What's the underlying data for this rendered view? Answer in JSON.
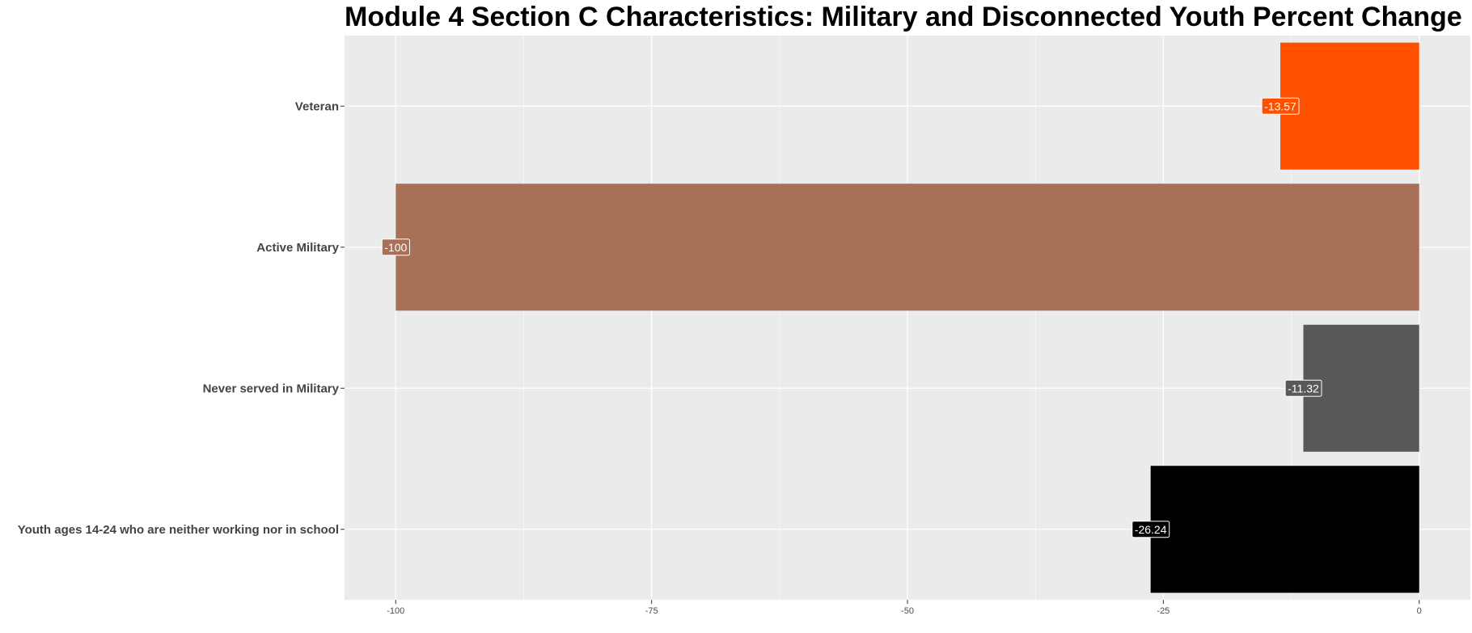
{
  "chart_data": {
    "type": "bar",
    "orientation": "horizontal",
    "title": "Module 4 Section C Characteristics: Military and Disconnected Youth Percent Change",
    "xlabel": "",
    "ylabel": "",
    "categories": [
      "Veteran",
      "Active Military",
      "Never served in Military",
      "Youth ages 14-24 who are neither working nor in school"
    ],
    "values": [
      -13.57,
      -100,
      -11.32,
      -26.24
    ],
    "data_labels": [
      "-13.57",
      "-100",
      "-11.32",
      "-26.24"
    ],
    "colors": [
      "#ff5000",
      "#a97058",
      "#58585a",
      "#000000"
    ],
    "xlim": [
      -105,
      5
    ],
    "x_ticks": [
      -100,
      -75,
      -50,
      -25,
      0
    ],
    "x_tick_labels": [
      "-100",
      "-75",
      "-50",
      "-25",
      "0"
    ],
    "grid": true,
    "legend": "none",
    "panel_background": "#ebebeb",
    "grid_color": "#ffffff"
  }
}
